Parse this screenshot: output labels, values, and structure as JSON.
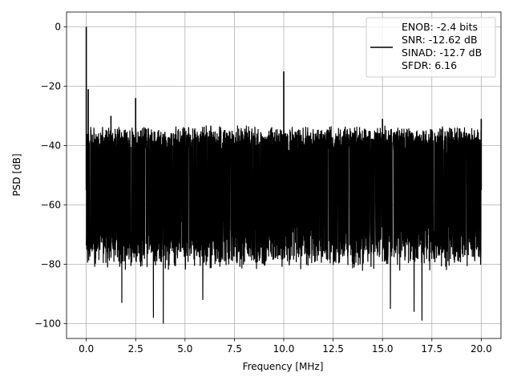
{
  "chart_data": {
    "type": "line",
    "title": "",
    "xlabel": "Frequency [MHz]",
    "ylabel": "PSD [dB]",
    "xlim": [
      -1.0,
      21.0
    ],
    "ylim": [
      -105,
      5
    ],
    "xticks": [
      0.0,
      2.5,
      5.0,
      7.5,
      10.0,
      12.5,
      15.0,
      17.5,
      20.0
    ],
    "xtick_labels": [
      "0.0",
      "2.5",
      "5.0",
      "7.5",
      "10.0",
      "12.5",
      "15.0",
      "17.5",
      "20.0"
    ],
    "yticks": [
      0,
      -20,
      -40,
      -60,
      -80,
      -100
    ],
    "ytick_labels": [
      "0",
      "−20",
      "−40",
      "−60",
      "−80",
      "−100"
    ],
    "grid": true,
    "legend_position": "top-right",
    "series": [
      {
        "color": "#000000",
        "noise_band_top_db": -36,
        "noise_band_mid_db": -55,
        "noise_band_bottom_db": -80,
        "deep_dips": [
          {
            "x": 1.8,
            "y": -93
          },
          {
            "x": 3.4,
            "y": -98
          },
          {
            "x": 3.9,
            "y": -100
          },
          {
            "x": 5.9,
            "y": -92
          },
          {
            "x": 15.4,
            "y": -95
          },
          {
            "x": 16.6,
            "y": -96
          },
          {
            "x": 17.0,
            "y": -99
          }
        ],
        "spurs": [
          {
            "x": 0.0,
            "y": 0.0
          },
          {
            "x": 0.1,
            "y": -21
          },
          {
            "x": 1.25,
            "y": -30
          },
          {
            "x": 2.5,
            "y": -24
          },
          {
            "x": 10.0,
            "y": -15
          },
          {
            "x": 15.0,
            "y": -31
          },
          {
            "x": 20.0,
            "y": -31
          }
        ]
      }
    ],
    "legend_lines": [
      "ENOB: -2.4 bits",
      "SNR: -12.62 dB",
      "SINAD: -12.7 dB",
      "SFDR: 6.16"
    ]
  }
}
